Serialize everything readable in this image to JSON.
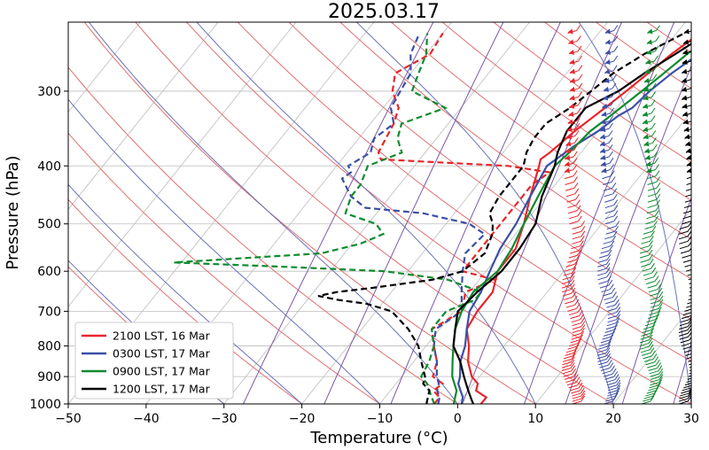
{
  "chart_data": {
    "type": "line",
    "subtype": "skew-T log-P sounding",
    "title": "2025.03.17",
    "xlabel": "Temperature (°C)",
    "ylabel": "Pressure (hPa)",
    "xlim": [
      -50,
      30
    ],
    "ylim": [
      1000,
      230
    ],
    "y_scale": "log",
    "x_ticks": [
      -50,
      -40,
      -30,
      -20,
      -10,
      0,
      10,
      20,
      30
    ],
    "y_ticks": [
      1000,
      900,
      800,
      700,
      600,
      500,
      400,
      300
    ],
    "grid": true,
    "legend_position": "lower-left",
    "background_lines": [
      "dry adiabats (red)",
      "moist adiabats (blue)",
      "mixing ratio (purple)",
      "skewed isotherms (gray)"
    ],
    "series": [
      {
        "name": "2100 LST, 16 Mar",
        "color": "#e8262b",
        "temperature": {
          "p": [
            1000,
            975,
            950,
            925,
            900,
            850,
            800,
            750,
            700,
            650,
            600,
            550,
            500,
            450,
            400,
            390,
            380,
            350,
            320,
            300,
            280,
            260,
            240
          ],
          "t": [
            3,
            3,
            1,
            0.5,
            -1,
            -3,
            -4.5,
            -6.5,
            -7,
            -7,
            -8.5,
            -8.5,
            -10,
            -12,
            -14,
            -14.5,
            -14,
            -13,
            -11.5,
            -10.5,
            -9.5,
            -8.5,
            -7
          ]
        },
        "dewpoint": {
          "p": [
            1000,
            975,
            950,
            925,
            900,
            850,
            800,
            750,
            700,
            650,
            620,
            600,
            560,
            500,
            450,
            430,
            410,
            400,
            390,
            380,
            360,
            340,
            320,
            300,
            280,
            260,
            240
          ],
          "t": [
            -3,
            -3,
            -4.5,
            -4,
            -6,
            -7,
            -9,
            -11,
            -9,
            -10.5,
            -8,
            -13,
            -13,
            -13,
            -13,
            -13,
            -12,
            -18,
            -35,
            -36,
            -36.5,
            -37,
            -38,
            -40.5,
            -42,
            -39.5,
            -40
          ]
        }
      },
      {
        "name": "0300 LST, 17 Mar",
        "color": "#3b4fa5",
        "temperature": {
          "p": [
            1000,
            975,
            950,
            925,
            900,
            850,
            800,
            750,
            700,
            650,
            600,
            550,
            500,
            450,
            400,
            370,
            350,
            330,
            320,
            300,
            280,
            260,
            240
          ],
          "t": [
            0.5,
            0,
            -1,
            -2,
            -2.5,
            -4,
            -5,
            -6.5,
            -8,
            -8.5,
            -9.5,
            -10.5,
            -11,
            -12,
            -13,
            -11.5,
            -10,
            -9,
            -8,
            -7.5,
            -6.5,
            -5,
            -4
          ]
        },
        "dewpoint": {
          "p": [
            1000,
            975,
            950,
            925,
            900,
            850,
            800,
            750,
            700,
            650,
            600,
            560,
            520,
            500,
            480,
            470,
            450,
            420,
            410,
            400,
            380,
            360,
            340,
            320,
            300,
            280,
            260,
            240
          ],
          "t": [
            -2.5,
            -3,
            -4,
            -4.5,
            -5.5,
            -7,
            -9,
            -10.5,
            -9,
            -11,
            -13,
            -14.5,
            -14,
            -17,
            -24,
            -32,
            -35,
            -38,
            -37.5,
            -38.5,
            -37,
            -38,
            -37,
            -39,
            -39.5,
            -40,
            -42,
            -43
          ]
        }
      },
      {
        "name": "0900 LST, 17 Mar",
        "color": "#0f8a2e",
        "temperature": {
          "p": [
            1000,
            975,
            950,
            925,
            900,
            850,
            800,
            750,
            700,
            650,
            600,
            550,
            500,
            450,
            400,
            380,
            350,
            330,
            320,
            300,
            280,
            260,
            240
          ],
          "t": [
            -0.5,
            -1,
            -1.5,
            -2.5,
            -3.5,
            -5,
            -6.5,
            -8,
            -9,
            -9.5,
            -8.5,
            -9,
            -10,
            -11,
            -12,
            -11.5,
            -11,
            -10,
            -9.5,
            -8.5,
            -7.5,
            -6.5,
            -5
          ]
        },
        "dewpoint": {
          "p": [
            1000,
            975,
            950,
            925,
            900,
            850,
            800,
            750,
            700,
            670,
            650,
            620,
            600,
            590,
            580,
            560,
            540,
            520,
            500,
            480,
            450,
            430,
            400,
            380,
            360,
            340,
            320,
            300,
            280,
            260,
            240
          ],
          "t": [
            -3,
            -4,
            -5,
            -6,
            -7.5,
            -8,
            -9,
            -11,
            -11,
            -8.5,
            -8.5,
            -14,
            -23,
            -36,
            -51,
            -33,
            -29,
            -27,
            -29,
            -34,
            -35,
            -35,
            -36,
            -33,
            -35,
            -36,
            -32,
            -38,
            -39,
            -40,
            -42
          ]
        }
      },
      {
        "name": "1200 LST, 17 Mar",
        "color": "#000000",
        "temperature": {
          "p": [
            1000,
            975,
            950,
            925,
            900,
            850,
            800,
            750,
            700,
            650,
            600,
            550,
            500,
            450,
            400,
            380,
            350,
            320,
            300,
            280,
            260,
            240
          ],
          "t": [
            2,
            1,
            0,
            -1,
            -2,
            -4,
            -6.5,
            -8,
            -9.5,
            -9,
            -8,
            -8,
            -8.5,
            -10.5,
            -12,
            -13,
            -14,
            -14,
            -11.5,
            -10,
            -8,
            -6
          ]
        },
        "dewpoint": {
          "p": [
            1000,
            975,
            950,
            925,
            900,
            850,
            800,
            750,
            700,
            680,
            670,
            660,
            650,
            640,
            620,
            600,
            560,
            520,
            500,
            480,
            450,
            420,
            400,
            380,
            360,
            340,
            320,
            300,
            280,
            260,
            240
          ],
          "t": [
            -4,
            -4.5,
            -5,
            -6.5,
            -7,
            -9,
            -11,
            -14,
            -18,
            -22,
            -26,
            -29,
            -27,
            -23,
            -16,
            -13,
            -12,
            -13,
            -14,
            -15.5,
            -16,
            -16,
            -16,
            -17,
            -17.5,
            -17.5,
            -16,
            -15,
            -14,
            -12,
            -9
          ]
        }
      }
    ],
    "wind_barb_columns": [
      {
        "series": "2100 LST, 16 Mar",
        "color": "#e8262b"
      },
      {
        "series": "0300 LST, 17 Mar",
        "color": "#3b4fa5"
      },
      {
        "series": "0900 LST, 17 Mar",
        "color": "#0f8a2e"
      },
      {
        "series": "1200 LST, 17 Mar",
        "color": "#000000"
      }
    ]
  }
}
